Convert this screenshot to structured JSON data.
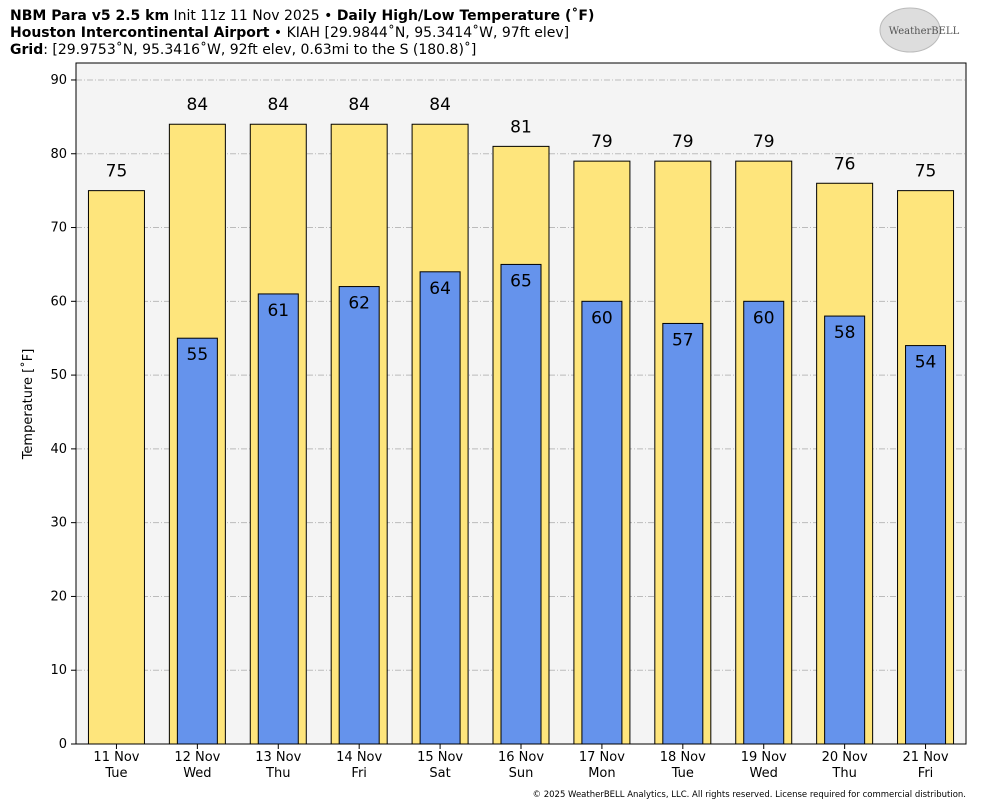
{
  "header": {
    "line1": [
      "NBM Para v5 2.5 km",
      " Init 11z 11 Nov 2025 • ",
      "Daily High/Low Temperature (˚F)"
    ],
    "line2": [
      "Houston Intercontinental Airport",
      " • KIAH [29.9844˚N, 95.3414˚W, 97ft elev]"
    ],
    "line3": [
      "Grid",
      ": [29.9753˚N, 95.3416˚W, 92ft elev, 0.63mi to the S (180.8)˚]"
    ],
    "logo": "WeatherBELL",
    "footer": "© 2025 WeatherBELL Analytics, LLC. All rights reserved. License required for commercial distribution."
  },
  "chart_data": {
    "type": "bar",
    "y_label": "Temperature [˚F]",
    "categories": [
      "11 Nov",
      "12 Nov",
      "13 Nov",
      "14 Nov",
      "15 Nov",
      "16 Nov",
      "17 Nov",
      "18 Nov",
      "19 Nov",
      "20 Nov",
      "21 Nov"
    ],
    "weekdays": [
      "Tue",
      "Wed",
      "Thu",
      "Fri",
      "Sat",
      "Sun",
      "Mon",
      "Tue",
      "Wed",
      "Thu",
      "Fri"
    ],
    "series": [
      {
        "name": "High",
        "color": "#fee57c",
        "values": [
          75,
          84,
          84,
          84,
          84,
          81,
          79,
          79,
          79,
          76,
          75
        ]
      },
      {
        "name": "Low",
        "color": "#6593ec",
        "values": [
          null,
          55,
          61,
          62,
          64,
          65,
          60,
          57,
          60,
          58,
          54
        ]
      }
    ],
    "ylim": [
      0,
      92.3
    ],
    "yticks": [
      0,
      10,
      20,
      30,
      40,
      50,
      60,
      70,
      80,
      90
    ],
    "grid": true
  }
}
